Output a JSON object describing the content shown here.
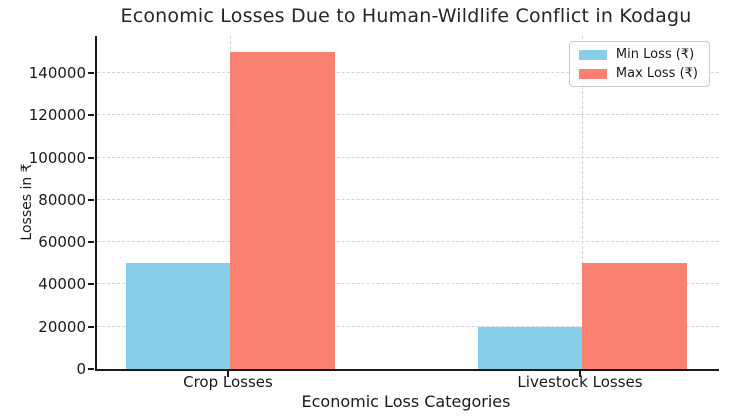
{
  "chart_data": {
    "type": "bar",
    "title": "Economic Losses Due to Human-Wildlife Conflict in Kodagu",
    "xlabel": "Economic Loss Categories",
    "ylabel": "Losses in ₹",
    "categories": [
      "Crop Losses",
      "Livestock Losses"
    ],
    "series": [
      {
        "name": "Min Loss (₹)",
        "color": "#87CEEB",
        "values": [
          50000,
          20000
        ]
      },
      {
        "name": "Max Loss (₹)",
        "color": "#FA8072",
        "values": [
          150000,
          50000
        ]
      }
    ],
    "yticks": [
      0,
      20000,
      40000,
      60000,
      80000,
      100000,
      120000,
      140000
    ],
    "ylim": [
      0,
      157500
    ],
    "grid": true,
    "grid_style": "dashed",
    "legend_position": "upper right",
    "spine_color": "#1a1a1a",
    "grid_color": "#d4d4d4"
  }
}
